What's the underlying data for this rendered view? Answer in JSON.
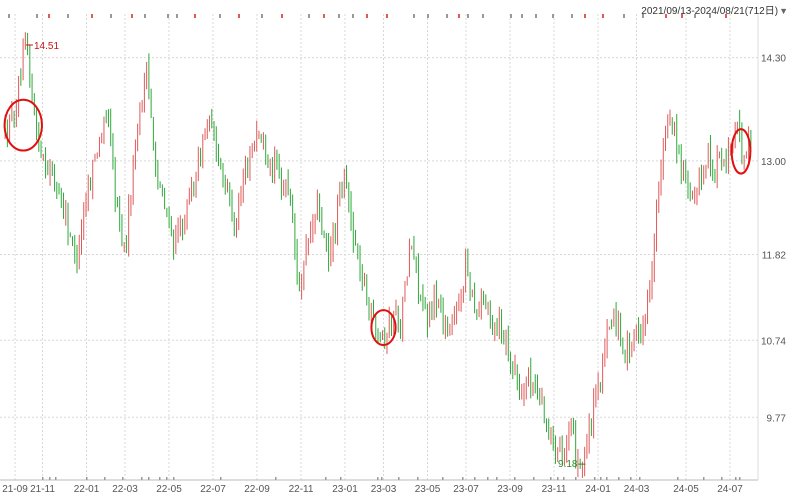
{
  "range_selector": {
    "label": "2021/09/13-2024/08/21(712日)",
    "caret": "▼"
  },
  "colors": {
    "up": "#e05a5a",
    "down": "#2fa83a",
    "grid": "#d8d8d8",
    "axis_text": "#555555",
    "max_label": "#d01010",
    "min_label": "#2a8a2a",
    "highlight": "#e01010",
    "marker": "#999999"
  },
  "chart_data": {
    "type": "candlestick",
    "y_ticks": [
      14.3,
      13.0,
      11.82,
      10.74,
      9.77
    ],
    "y_tick_labels": [
      "14.30",
      "13.00",
      "11.82",
      "10.74",
      "9.77"
    ],
    "ylim": [
      8.98,
      14.85
    ],
    "x_tick_labels": [
      "21-09",
      "21-11",
      "22-01",
      "22-03",
      "22-05",
      "22-07",
      "22-09",
      "22-11",
      "23-01",
      "23-03",
      "23-05",
      "23-07",
      "23-09",
      "23-11",
      "24-01",
      "24-03",
      "24-05",
      "24-07"
    ],
    "x_tick_positions": [
      0.02,
      0.07,
      0.15,
      0.22,
      0.3,
      0.38,
      0.46,
      0.54,
      0.62,
      0.69,
      0.77,
      0.84,
      0.92,
      1.0,
      1.08,
      1.15,
      1.24,
      1.32
    ],
    "x_range": [
      0,
      1.36
    ],
    "max_label": {
      "text": "14.51",
      "x": 0.04,
      "price": 14.51
    },
    "min_label": {
      "text": "9.18",
      "x": 1.05,
      "price": 9.18
    },
    "price_path": [
      [
        0.0,
        13.3
      ],
      [
        0.02,
        13.6
      ],
      [
        0.04,
        14.51
      ],
      [
        0.06,
        13.3
      ],
      [
        0.08,
        12.9
      ],
      [
        0.1,
        12.6
      ],
      [
        0.12,
        12.1
      ],
      [
        0.13,
        11.7
      ],
      [
        0.15,
        12.6
      ],
      [
        0.17,
        13.2
      ],
      [
        0.19,
        13.6
      ],
      [
        0.2,
        12.7
      ],
      [
        0.21,
        12.2
      ],
      [
        0.22,
        11.85
      ],
      [
        0.24,
        13.3
      ],
      [
        0.25,
        13.8
      ],
      [
        0.26,
        14.1
      ],
      [
        0.27,
        13.4
      ],
      [
        0.28,
        12.7
      ],
      [
        0.3,
        12.2
      ],
      [
        0.31,
        11.95
      ],
      [
        0.33,
        12.3
      ],
      [
        0.35,
        12.9
      ],
      [
        0.37,
        13.5
      ],
      [
        0.39,
        13.1
      ],
      [
        0.41,
        12.5
      ],
      [
        0.42,
        12.2
      ],
      [
        0.44,
        12.9
      ],
      [
        0.46,
        13.4
      ],
      [
        0.48,
        13.1
      ],
      [
        0.5,
        12.8
      ],
      [
        0.52,
        12.6
      ],
      [
        0.53,
        11.8
      ],
      [
        0.54,
        11.3
      ],
      [
        0.55,
        11.9
      ],
      [
        0.57,
        12.4
      ],
      [
        0.58,
        12.1
      ],
      [
        0.59,
        11.7
      ],
      [
        0.61,
        12.5
      ],
      [
        0.62,
        12.8
      ],
      [
        0.63,
        12.3
      ],
      [
        0.64,
        11.9
      ],
      [
        0.65,
        11.55
      ],
      [
        0.66,
        11.3
      ],
      [
        0.67,
        11.0
      ],
      [
        0.68,
        10.95
      ],
      [
        0.69,
        10.8
      ],
      [
        0.7,
        10.9
      ],
      [
        0.71,
        11.1
      ],
      [
        0.72,
        10.95
      ],
      [
        0.73,
        11.4
      ],
      [
        0.74,
        12.0
      ],
      [
        0.75,
        11.6
      ],
      [
        0.76,
        11.2
      ],
      [
        0.77,
        10.9
      ],
      [
        0.78,
        11.35
      ],
      [
        0.79,
        11.2
      ],
      [
        0.8,
        11.0
      ],
      [
        0.81,
        10.9
      ],
      [
        0.82,
        11.0
      ],
      [
        0.83,
        11.3
      ],
      [
        0.84,
        11.7
      ],
      [
        0.85,
        11.4
      ],
      [
        0.86,
        11.1
      ],
      [
        0.87,
        11.35
      ],
      [
        0.88,
        11.1
      ],
      [
        0.89,
        10.9
      ],
      [
        0.9,
        11.0
      ],
      [
        0.91,
        10.8
      ],
      [
        0.92,
        10.6
      ],
      [
        0.93,
        10.3
      ],
      [
        0.94,
        10.0
      ],
      [
        0.95,
        10.3
      ],
      [
        0.96,
        10.2
      ],
      [
        0.97,
        10.1
      ],
      [
        0.98,
        9.9
      ],
      [
        0.99,
        9.6
      ],
      [
        1.0,
        9.4
      ],
      [
        1.01,
        9.5
      ],
      [
        1.02,
        9.3
      ],
      [
        1.03,
        9.6
      ],
      [
        1.04,
        9.3
      ],
      [
        1.05,
        9.18
      ],
      [
        1.06,
        9.45
      ],
      [
        1.07,
        9.8
      ],
      [
        1.08,
        10.1
      ],
      [
        1.09,
        10.5
      ],
      [
        1.1,
        10.9
      ],
      [
        1.11,
        11.1
      ],
      [
        1.12,
        10.8
      ],
      [
        1.13,
        10.6
      ],
      [
        1.14,
        10.7
      ],
      [
        1.15,
        10.8
      ],
      [
        1.16,
        10.95
      ],
      [
        1.17,
        11.2
      ],
      [
        1.18,
        11.9
      ],
      [
        1.19,
        12.6
      ],
      [
        1.2,
        13.2
      ],
      [
        1.21,
        13.6
      ],
      [
        1.22,
        13.4
      ],
      [
        1.23,
        12.9
      ],
      [
        1.24,
        12.7
      ],
      [
        1.25,
        12.4
      ],
      [
        1.26,
        12.7
      ],
      [
        1.27,
        12.9
      ],
      [
        1.28,
        13.1
      ],
      [
        1.29,
        12.8
      ],
      [
        1.3,
        13.1
      ],
      [
        1.31,
        12.9
      ],
      [
        1.32,
        13.2
      ],
      [
        1.33,
        13.4
      ],
      [
        1.34,
        13.2
      ],
      [
        1.35,
        13.1
      ],
      [
        1.36,
        13.4
      ]
    ],
    "candles_per_unit": 245,
    "highlight_circles": [
      {
        "x": 0.035,
        "price": 13.45,
        "rx_units": 0.034,
        "ry_price": 0.32
      },
      {
        "x": 0.69,
        "price": 10.9,
        "rx_units": 0.022,
        "ry_price": 0.22
      },
      {
        "x": 1.34,
        "price": 13.12,
        "rx_units": 0.017,
        "ry_price": 0.28
      }
    ]
  }
}
